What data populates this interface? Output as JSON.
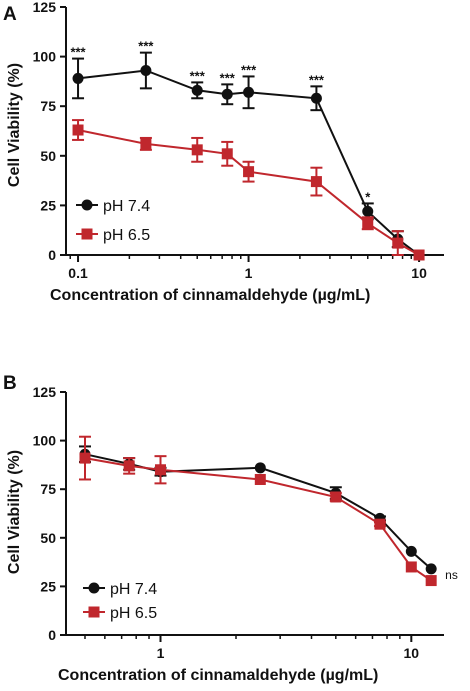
{
  "chart_data": [
    {
      "panel_label": "A",
      "type": "line",
      "xscale": "log",
      "xlabel": "Concentration of cinnamaldehyde (µg/mL)",
      "ylabel": "Cell Viability (%)",
      "xlim": [
        0.085,
        14
      ],
      "ylim": [
        0,
        125
      ],
      "xticks": [
        "0.1",
        "1",
        "10"
      ],
      "yticks": [
        "0",
        "25",
        "50",
        "75",
        "100",
        "125"
      ],
      "legend_position": "bottom-left",
      "series": [
        {
          "name": "pH 7.4",
          "color": "#111111",
          "marker": "circle",
          "x": [
            0.1,
            0.25,
            0.5,
            0.75,
            1,
            2.5,
            5,
            7.5,
            10
          ],
          "y": [
            89,
            93,
            83,
            81,
            82,
            79,
            22,
            8,
            0
          ],
          "err": [
            10,
            9,
            4,
            5,
            8,
            6,
            4,
            4,
            0
          ]
        },
        {
          "name": "pH 6.5",
          "color": "#c0272d",
          "marker": "square",
          "x": [
            0.1,
            0.25,
            0.5,
            0.75,
            1,
            2.5,
            5,
            7.5,
            10
          ],
          "y": [
            63,
            56,
            53,
            51,
            42,
            37,
            16,
            6,
            0
          ],
          "err": [
            5,
            3,
            6,
            6,
            5,
            7,
            3,
            6,
            0
          ]
        }
      ],
      "annotations": [
        {
          "x": 0.1,
          "text": "***"
        },
        {
          "x": 0.25,
          "text": "***"
        },
        {
          "x": 0.5,
          "text": "***"
        },
        {
          "x": 0.75,
          "text": "***"
        },
        {
          "x": 1,
          "text": "***"
        },
        {
          "x": 2.5,
          "text": "***"
        },
        {
          "x": 5,
          "text": "*"
        }
      ]
    },
    {
      "panel_label": "B",
      "type": "line",
      "xscale": "log",
      "xlabel": "Concentration of cinnamaldehyde (µg/mL)",
      "ylabel": "Cell Viability (%)",
      "xlim": [
        0.42,
        13.5
      ],
      "ylim": [
        0,
        125
      ],
      "xticks": [
        "1",
        "10"
      ],
      "yticks": [
        "0",
        "25",
        "50",
        "75",
        "100",
        "125"
      ],
      "legend_position": "bottom-left",
      "series": [
        {
          "name": "pH 7.4",
          "color": "#111111",
          "marker": "circle",
          "x": [
            0.5,
            0.75,
            1,
            2.5,
            5,
            7.5,
            10,
            12
          ],
          "y": [
            93,
            88,
            84,
            86,
            73,
            60,
            43,
            34
          ],
          "err": [
            4,
            3,
            2,
            0,
            3,
            1,
            0,
            0
          ]
        },
        {
          "name": "pH 6.5",
          "color": "#c0272d",
          "marker": "square",
          "x": [
            0.5,
            0.75,
            1,
            2.5,
            5,
            7.5,
            10,
            12
          ],
          "y": [
            91,
            87,
            85,
            80,
            71,
            57,
            35,
            28
          ],
          "err": [
            11,
            4,
            7,
            0,
            2,
            1,
            0,
            0
          ]
        }
      ],
      "annotations": [
        {
          "x": 12,
          "text": "ns"
        }
      ]
    }
  ]
}
